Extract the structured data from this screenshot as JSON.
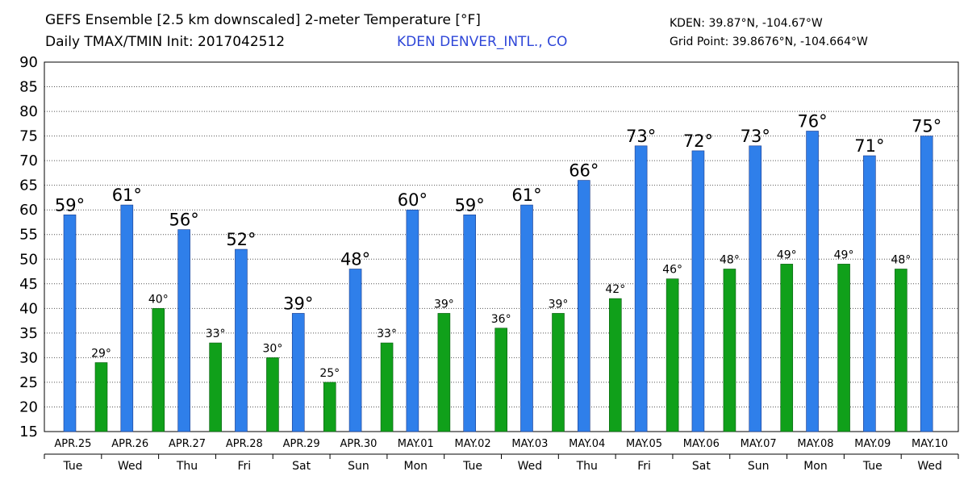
{
  "header": {
    "title_line1": "GEFS Ensemble [2.5 km downscaled] 2-meter Temperature [°F]",
    "title_line2": "Daily TMAX/TMIN Init: 2017042512",
    "station": "KDEN DENVER_INTL., CO",
    "coord_line1": "KDEN: 39.87°N, -104.67°W",
    "coord_line2": "Grid Point: 39.8676°N, -104.664°W"
  },
  "colors": {
    "tmax": "#2f7fea",
    "tmin": "#10a01a",
    "grid": "#555555",
    "station": "#2f47d8"
  },
  "chart_data": {
    "type": "bar",
    "categories": [
      "APR.25",
      "APR.26",
      "APR.27",
      "APR.28",
      "APR.29",
      "APR.30",
      "MAY.01",
      "MAY.02",
      "MAY.03",
      "MAY.04",
      "MAY.05",
      "MAY.06",
      "MAY.07",
      "MAY.08",
      "MAY.09",
      "MAY.10"
    ],
    "weekdays": [
      "Tue",
      "Wed",
      "Thu",
      "Fri",
      "Sat",
      "Sun",
      "Mon",
      "Tue",
      "Wed",
      "Thu",
      "Fri",
      "Sat",
      "Sun",
      "Mon",
      "Tue",
      "Wed"
    ],
    "series": [
      {
        "values": [
          59,
          61,
          56,
          52,
          39,
          48,
          60,
          59,
          61,
          66,
          73,
          72,
          73,
          76,
          71,
          75
        ],
        "labels": [
          "59°",
          "61°",
          "56°",
          "52°",
          "39°",
          "48°",
          "60°",
          "59°",
          "61°",
          "66°",
          "73°",
          "72°",
          "73°",
          "76°",
          "71°",
          "75°"
        ]
      },
      {
        "values": [
          29,
          40,
          33,
          30,
          25,
          33,
          39,
          36,
          39,
          42,
          46,
          48,
          49,
          49,
          48,
          null
        ],
        "labels": [
          "29°",
          "40°",
          "33°",
          "30°",
          "25°",
          "33°",
          "39°",
          "36°",
          "39°",
          "42°",
          "46°",
          "48°",
          "49°",
          "49°",
          "48°",
          null
        ]
      }
    ],
    "yticks": [
      15,
      20,
      25,
      30,
      35,
      40,
      45,
      50,
      55,
      60,
      65,
      70,
      75,
      80,
      85,
      90
    ],
    "ylim": [
      15,
      90
    ],
    "grid": true
  }
}
